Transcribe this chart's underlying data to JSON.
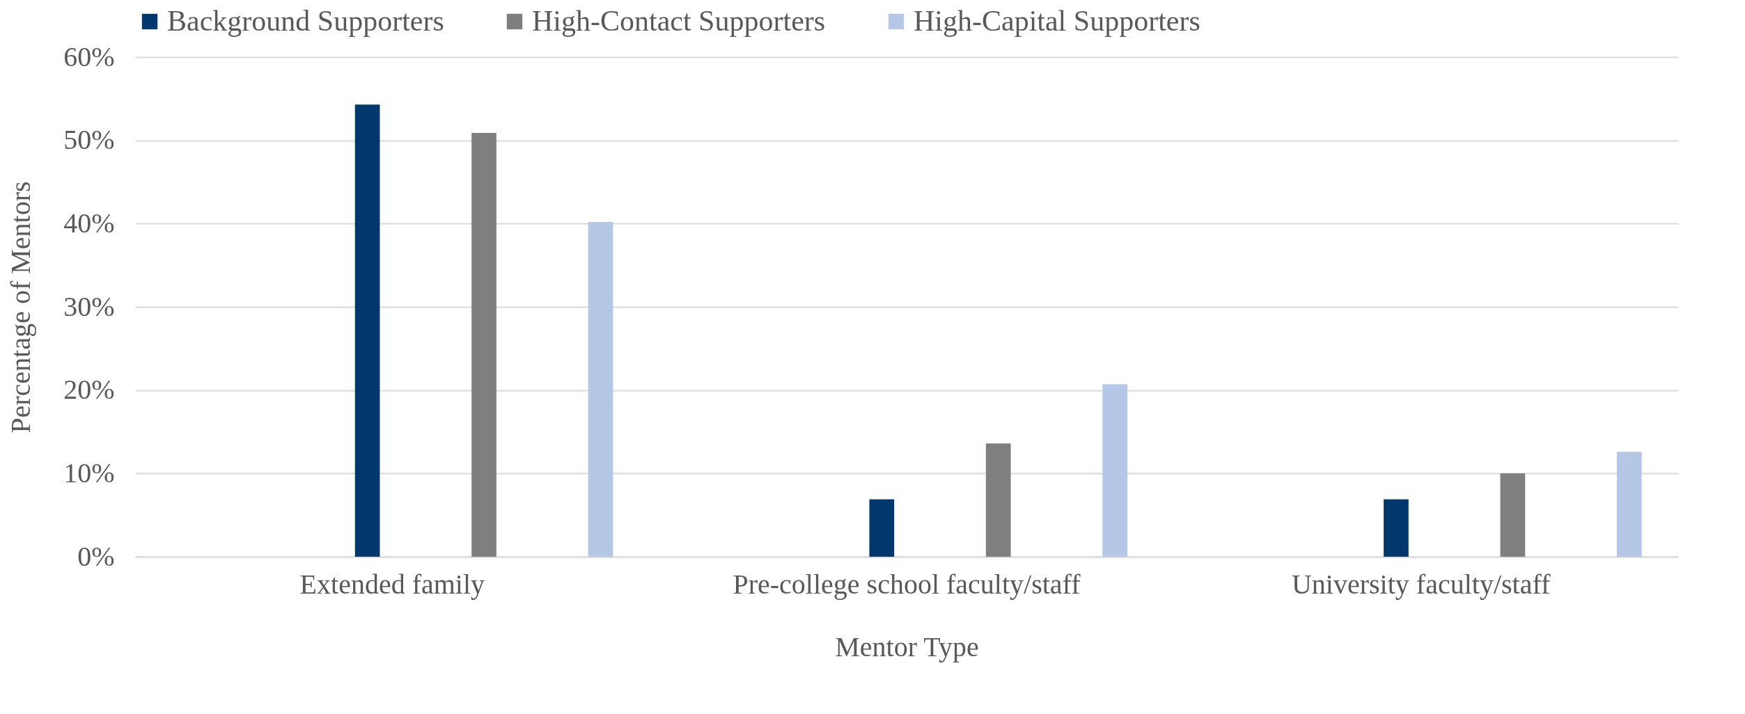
{
  "chart_data": {
    "type": "bar",
    "xlabel": "Mentor Type",
    "ylabel": "Percentage of Mentors",
    "categories": [
      "Extended family",
      "Pre-college school faculty/staff",
      "University faculty/staff"
    ],
    "series": [
      {
        "name": "Background Supporters",
        "color": "#02386e",
        "values": [
          54.3,
          6.9,
          6.9
        ]
      },
      {
        "name": "High-Contact Supporters",
        "color": "#7f7f7f",
        "values": [
          50.9,
          13.6,
          10.0
        ]
      },
      {
        "name": "High-Capital Supporters",
        "color": "#b4c7e7",
        "values": [
          40.2,
          20.7,
          12.6
        ]
      }
    ],
    "ylim": [
      0,
      60
    ],
    "yticks": [
      {
        "value": 0,
        "label": "0%"
      },
      {
        "value": 10,
        "label": "10%"
      },
      {
        "value": 20,
        "label": "20%"
      },
      {
        "value": 30,
        "label": "30%"
      },
      {
        "value": 40,
        "label": "40%"
      },
      {
        "value": 50,
        "label": "50%"
      },
      {
        "value": 60,
        "label": "60%"
      }
    ],
    "grid": "y",
    "legend": "top"
  }
}
